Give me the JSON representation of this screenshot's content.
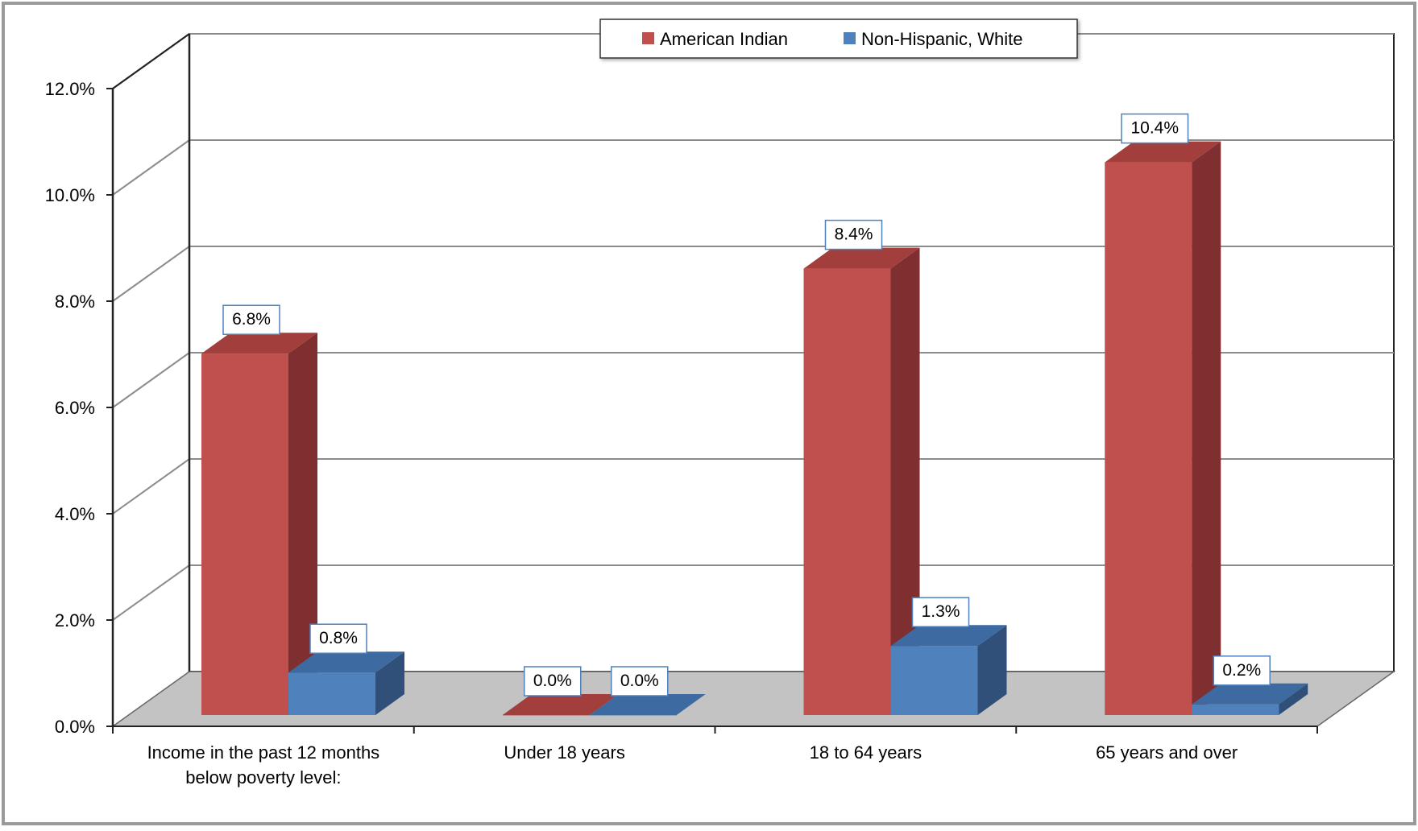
{
  "chart_data": {
    "type": "bar",
    "title": "",
    "xlabel": "",
    "ylabel": "",
    "ylim": [
      0,
      0.12
    ],
    "y_ticks": [
      {
        "value": 0.0,
        "label": "0.0%"
      },
      {
        "value": 0.02,
        "label": "2.0%"
      },
      {
        "value": 0.04,
        "label": "4.0%"
      },
      {
        "value": 0.06,
        "label": "6.0%"
      },
      {
        "value": 0.08,
        "label": "8.0%"
      },
      {
        "value": 0.1,
        "label": "10.0%"
      },
      {
        "value": 0.12,
        "label": "12.0%"
      }
    ],
    "categories": [
      [
        "Income in the past 12 months",
        "below poverty level:"
      ],
      [
        "Under 18 years"
      ],
      [
        "18 to 64 years"
      ],
      [
        "65 years and over"
      ]
    ],
    "series": [
      {
        "name": "American Indian",
        "values": [
          0.068,
          0.0,
          0.084,
          0.104
        ],
        "labels": [
          "6.8%",
          "0.0%",
          "8.4%",
          "10.4%"
        ],
        "color": "#c0504d",
        "side_color": "#7f2f2f",
        "top_color": "#a23e3c"
      },
      {
        "name": "Non-Hispanic, White",
        "values": [
          0.008,
          0.0,
          0.013,
          0.002
        ],
        "labels": [
          "0.8%",
          "0.0%",
          "1.3%",
          "0.2%"
        ],
        "color": "#4f81bd",
        "side_color": "#30507a",
        "top_color": "#3d6aa0"
      }
    ],
    "legend": "top-center",
    "grid": true,
    "three_d": true
  }
}
